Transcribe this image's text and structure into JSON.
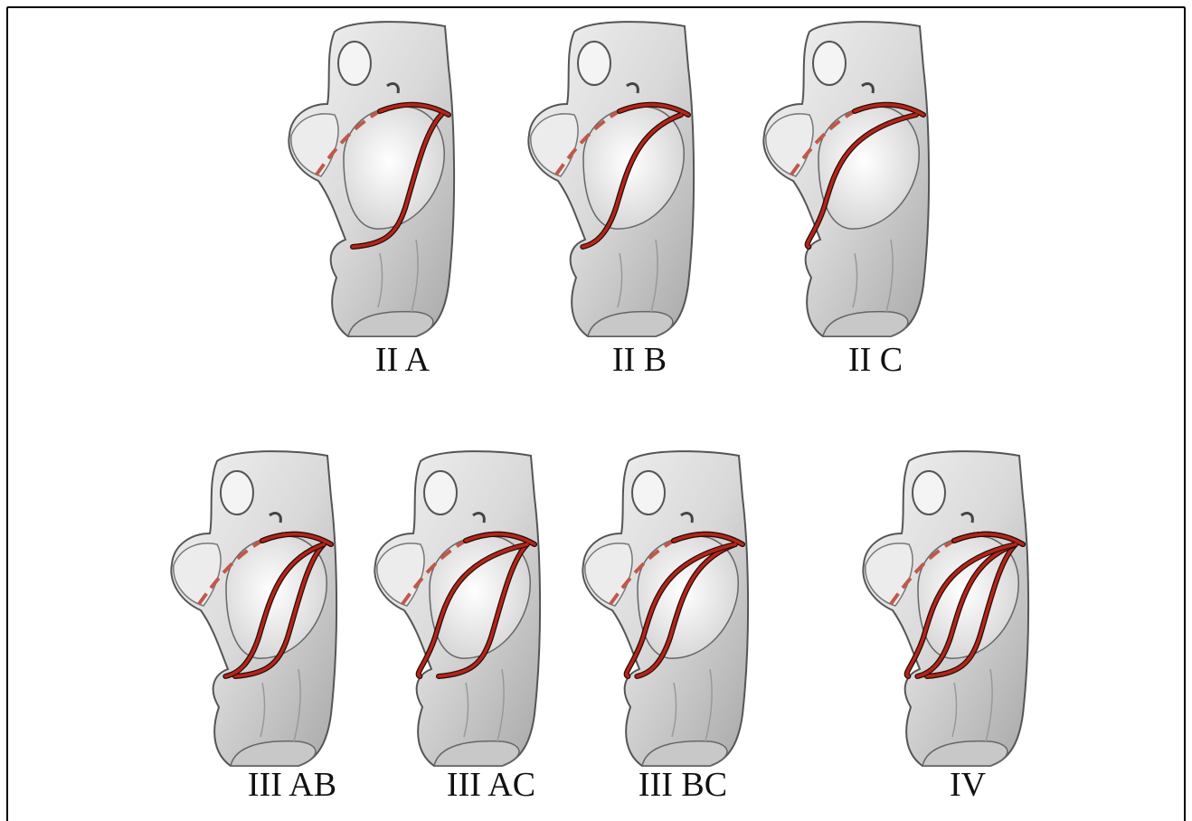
{
  "figures": [
    {
      "label": "II A"
    },
    {
      "label": "II B"
    },
    {
      "label": "II C"
    },
    {
      "label": "III AB"
    },
    {
      "label": "III AC"
    },
    {
      "label": "III BC"
    },
    {
      "label": "IV"
    }
  ]
}
